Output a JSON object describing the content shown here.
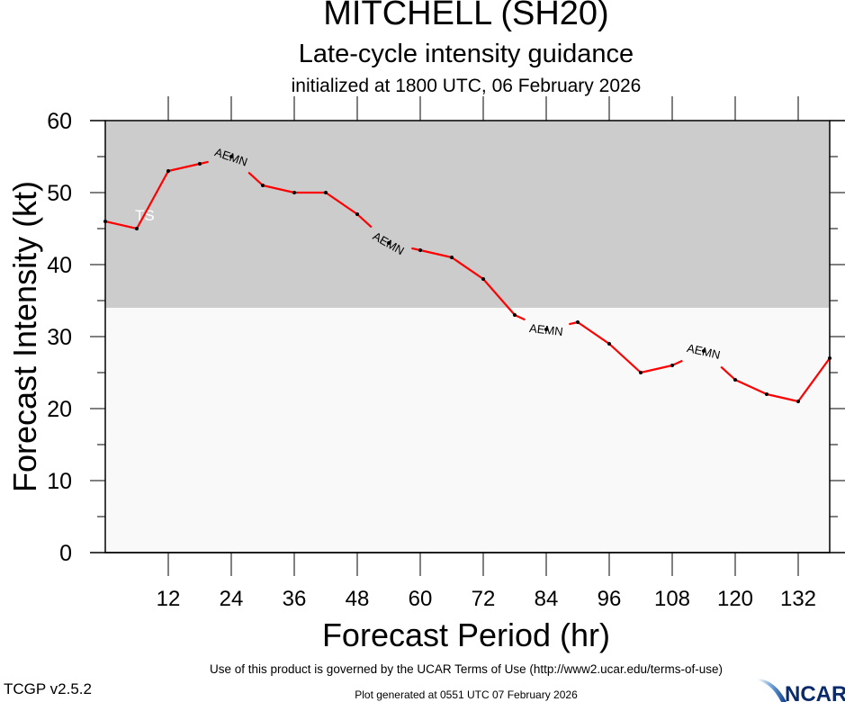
{
  "header": {
    "title": "MITCHELL (SH20)",
    "subtitle": "Late-cycle intensity guidance",
    "initialized": "initialized at 1800 UTC, 06 February 2026"
  },
  "footer": {
    "terms": "Use of this product is governed by the UCAR Terms of Use (http://www2.ucar.edu/terms-of-use)",
    "generated": "Plot generated at 0551 UTC   07 February 2026",
    "version": "TCGP v2.5.2",
    "logo_text": "NCAR"
  },
  "colors": {
    "line": "#ff0000",
    "ts_band": "#cccccc",
    "below_band": "#f9f9f9",
    "ts_label": "#ffffff"
  },
  "chart_data": {
    "type": "line",
    "title": "MITCHELL (SH20)",
    "subtitle": "Late-cycle intensity guidance",
    "xlabel": "Forecast Period (hr)",
    "ylabel": "Forecast Intensity (kt)",
    "xlim": [
      0,
      138
    ],
    "ylim": [
      0,
      60
    ],
    "xticks": [
      12,
      24,
      36,
      48,
      60,
      72,
      84,
      96,
      108,
      120,
      132
    ],
    "yticks": [
      0,
      10,
      20,
      30,
      40,
      50,
      60
    ],
    "yminor_step": 5,
    "grid": false,
    "bands": [
      {
        "name": "TS",
        "from": 34,
        "to": 60,
        "label": "TS"
      },
      {
        "name": "below-TS",
        "from": 0,
        "to": 34,
        "label": ""
      }
    ],
    "series": [
      {
        "name": "AEMN",
        "x": [
          0,
          6,
          12,
          18,
          24,
          30,
          36,
          42,
          48,
          54,
          60,
          66,
          72,
          78,
          84,
          90,
          96,
          102,
          108,
          114,
          120,
          126,
          132,
          138
        ],
        "values": [
          46,
          45,
          53,
          54,
          55,
          51,
          50,
          50,
          47,
          43,
          42,
          41,
          38,
          33,
          31,
          32,
          29,
          25,
          26,
          28,
          24,
          22,
          21,
          27
        ],
        "label_at_hours": [
          24,
          54,
          84,
          114
        ]
      }
    ]
  }
}
